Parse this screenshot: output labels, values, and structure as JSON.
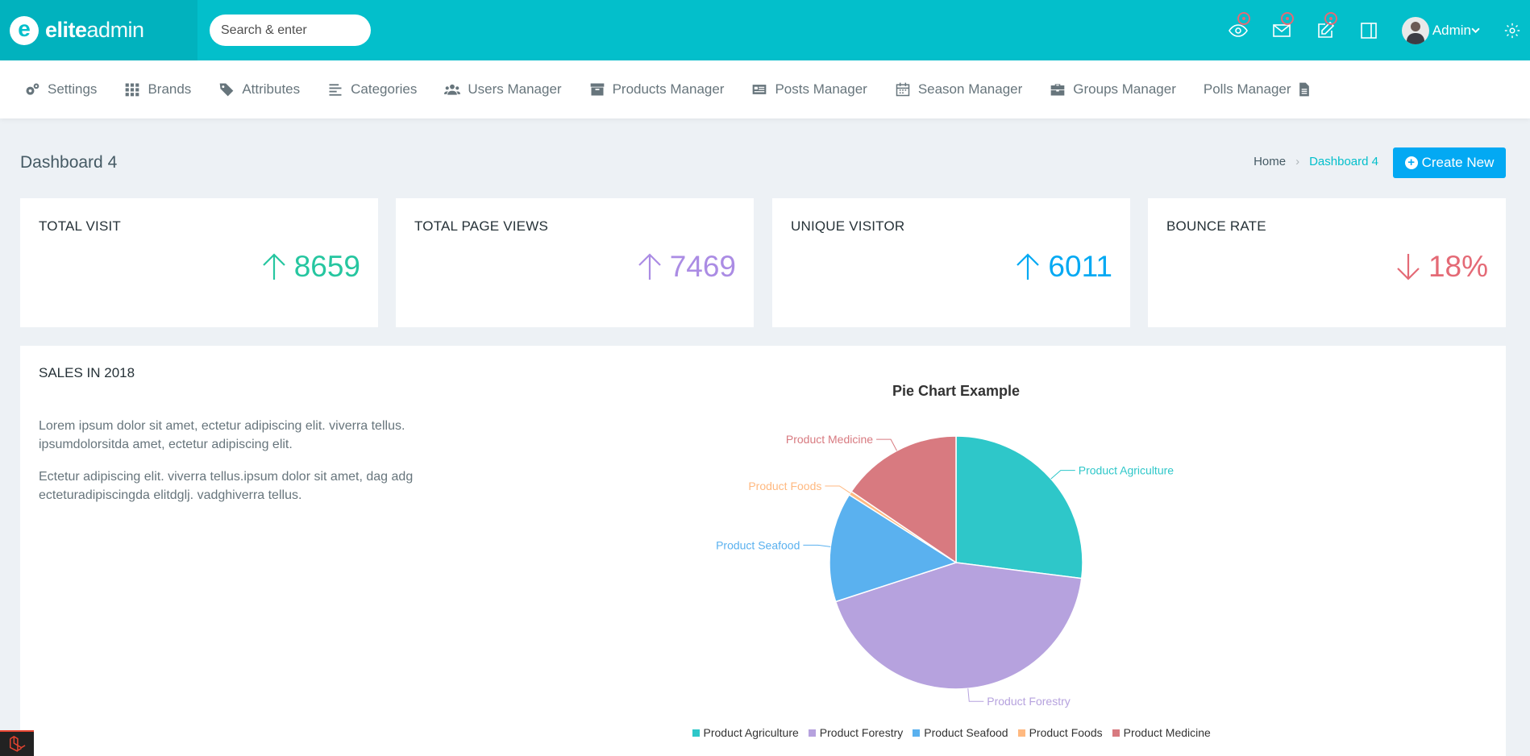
{
  "app": {
    "logo_bold": "elite",
    "logo_light": "admin"
  },
  "header": {
    "search_placeholder": "Search & enter",
    "user_name": "Admin"
  },
  "nav": {
    "items": [
      {
        "label": "Settings",
        "icon": "gears-icon"
      },
      {
        "label": "Brands",
        "icon": "grid-icon"
      },
      {
        "label": "Attributes",
        "icon": "tags-icon"
      },
      {
        "label": "Categories",
        "icon": "align-left-icon"
      },
      {
        "label": "Users Manager",
        "icon": "users-icon"
      },
      {
        "label": "Products Manager",
        "icon": "archive-icon"
      },
      {
        "label": "Posts Manager",
        "icon": "newspaper-icon"
      },
      {
        "label": "Season Manager",
        "icon": "calendar-icon"
      },
      {
        "label": "Groups Manager",
        "icon": "briefcase-icon"
      },
      {
        "label": "Polls Manager",
        "icon": "file-icon"
      }
    ]
  },
  "page": {
    "title": "Dashboard 4",
    "breadcrumb_home": "Home",
    "breadcrumb_current": "Dashboard 4",
    "create_button": "Create New"
  },
  "stats": [
    {
      "title": "TOTAL VISIT",
      "value": "8659",
      "trend": "up",
      "color": "#26c6a0"
    },
    {
      "title": "TOTAL PAGE VIEWS",
      "value": "7469",
      "trend": "up",
      "color": "#ab8ce4"
    },
    {
      "title": "UNIQUE VISITOR",
      "value": "6011",
      "trend": "up",
      "color": "#03a9f3"
    },
    {
      "title": "BOUNCE RATE",
      "value": "18%",
      "trend": "down",
      "color": "#e46a76"
    }
  ],
  "sales": {
    "title": "SALES IN 2018",
    "paragraph1": "Lorem ipsum dolor sit amet, ectetur adipiscing elit. viverra tellus. ipsumdolorsitda amet, ectetur adipiscing elit.",
    "paragraph2": "Ectetur adipiscing elit. viverra tellus.ipsum dolor sit amet, dag adg ecteturadipiscingda elitdglj. vadghiverra tellus."
  },
  "chart_data": {
    "type": "pie",
    "title": "Pie Chart Example",
    "legend": "bottom",
    "series": [
      {
        "name": "Product Agriculture",
        "value": 27,
        "color": "#2ec7c9"
      },
      {
        "name": "Product Forestry",
        "value": 43,
        "color": "#b6a2de"
      },
      {
        "name": "Product Seafood",
        "value": 14,
        "color": "#5ab1ef"
      },
      {
        "name": "Product Foods",
        "value": 0.5,
        "color": "#ffb980"
      },
      {
        "name": "Product Medicine",
        "value": 15.5,
        "color": "#d87a80"
      }
    ]
  }
}
